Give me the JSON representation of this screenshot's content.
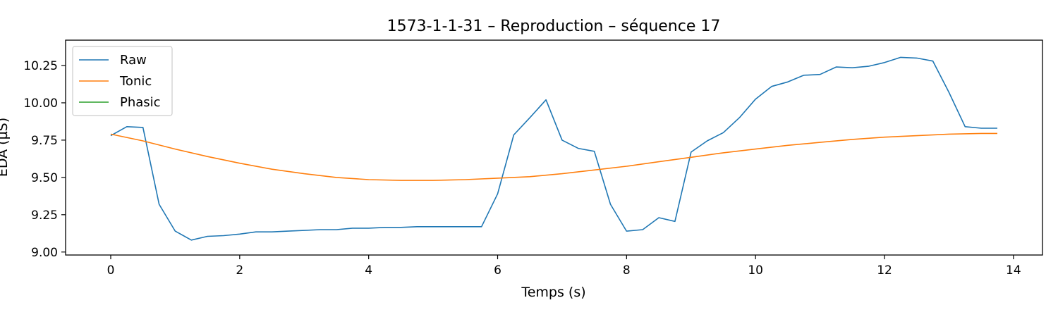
{
  "chart_data": {
    "type": "line",
    "title": "1573-1-1-31 – Reproduction – séquence 17",
    "xlabel": "Temps (s)",
    "ylabel": "EDA (µS)",
    "xlim": [
      -0.7,
      14.45
    ],
    "ylim": [
      8.98,
      10.42
    ],
    "xticks": [
      0,
      2,
      4,
      6,
      8,
      10,
      12,
      14
    ],
    "yticks": [
      9.0,
      9.25,
      9.5,
      9.75,
      10.0,
      10.25
    ],
    "xtick_labels": [
      "0",
      "2",
      "4",
      "6",
      "8",
      "10",
      "12",
      "14"
    ],
    "ytick_labels": [
      "9.00",
      "9.25",
      "9.50",
      "9.75",
      "10.00",
      "10.25"
    ],
    "legend_position": "top-left",
    "grid": false,
    "series": [
      {
        "name": "Raw",
        "color": "#1f77b4",
        "x": [
          0,
          0.25,
          0.5,
          0.75,
          1.0,
          1.25,
          1.5,
          1.75,
          2.0,
          2.25,
          2.5,
          2.75,
          3.0,
          3.25,
          3.5,
          3.75,
          4.0,
          4.25,
          4.5,
          4.75,
          5.0,
          5.25,
          5.5,
          5.75,
          6.0,
          6.25,
          6.5,
          6.75,
          7.0,
          7.25,
          7.5,
          7.75,
          8.0,
          8.25,
          8.5,
          8.75,
          9.0,
          9.25,
          9.5,
          9.75,
          10.0,
          10.25,
          10.5,
          10.75,
          11.0,
          11.25,
          11.5,
          11.75,
          12.0,
          12.25,
          12.5,
          12.75,
          13.0,
          13.25,
          13.5,
          13.75
        ],
        "values": [
          9.78,
          9.84,
          9.835,
          9.32,
          9.14,
          9.08,
          9.105,
          9.11,
          9.12,
          9.135,
          9.135,
          9.14,
          9.145,
          9.15,
          9.15,
          9.16,
          9.16,
          9.165,
          9.165,
          9.17,
          9.17,
          9.17,
          9.17,
          9.17,
          9.39,
          9.785,
          9.9,
          10.02,
          9.75,
          9.695,
          9.675,
          9.32,
          9.14,
          9.15,
          9.23,
          9.205,
          9.67,
          9.745,
          9.8,
          9.9,
          10.025,
          10.11,
          10.14,
          10.185,
          10.19,
          10.24,
          10.235,
          10.245,
          10.27,
          10.305,
          10.3,
          10.28,
          10.07,
          9.84,
          9.83,
          9.83
        ]
      },
      {
        "name": "Tonic",
        "color": "#ff7f0e",
        "x": [
          0,
          0.5,
          1.0,
          1.5,
          2.0,
          2.5,
          3.0,
          3.5,
          4.0,
          4.5,
          5.0,
          5.5,
          6.0,
          6.5,
          7.0,
          7.5,
          8.0,
          8.5,
          9.0,
          9.5,
          10.0,
          10.5,
          11.0,
          11.5,
          12.0,
          12.5,
          13.0,
          13.5,
          13.75
        ],
        "values": [
          9.79,
          9.745,
          9.69,
          9.64,
          9.595,
          9.555,
          9.525,
          9.5,
          9.485,
          9.48,
          9.48,
          9.485,
          9.495,
          9.505,
          9.525,
          9.55,
          9.575,
          9.605,
          9.635,
          9.665,
          9.69,
          9.715,
          9.735,
          9.755,
          9.77,
          9.78,
          9.79,
          9.795,
          9.795
        ]
      },
      {
        "name": "Phasic",
        "color": "#2ca02c",
        "x": [],
        "values": []
      }
    ]
  }
}
